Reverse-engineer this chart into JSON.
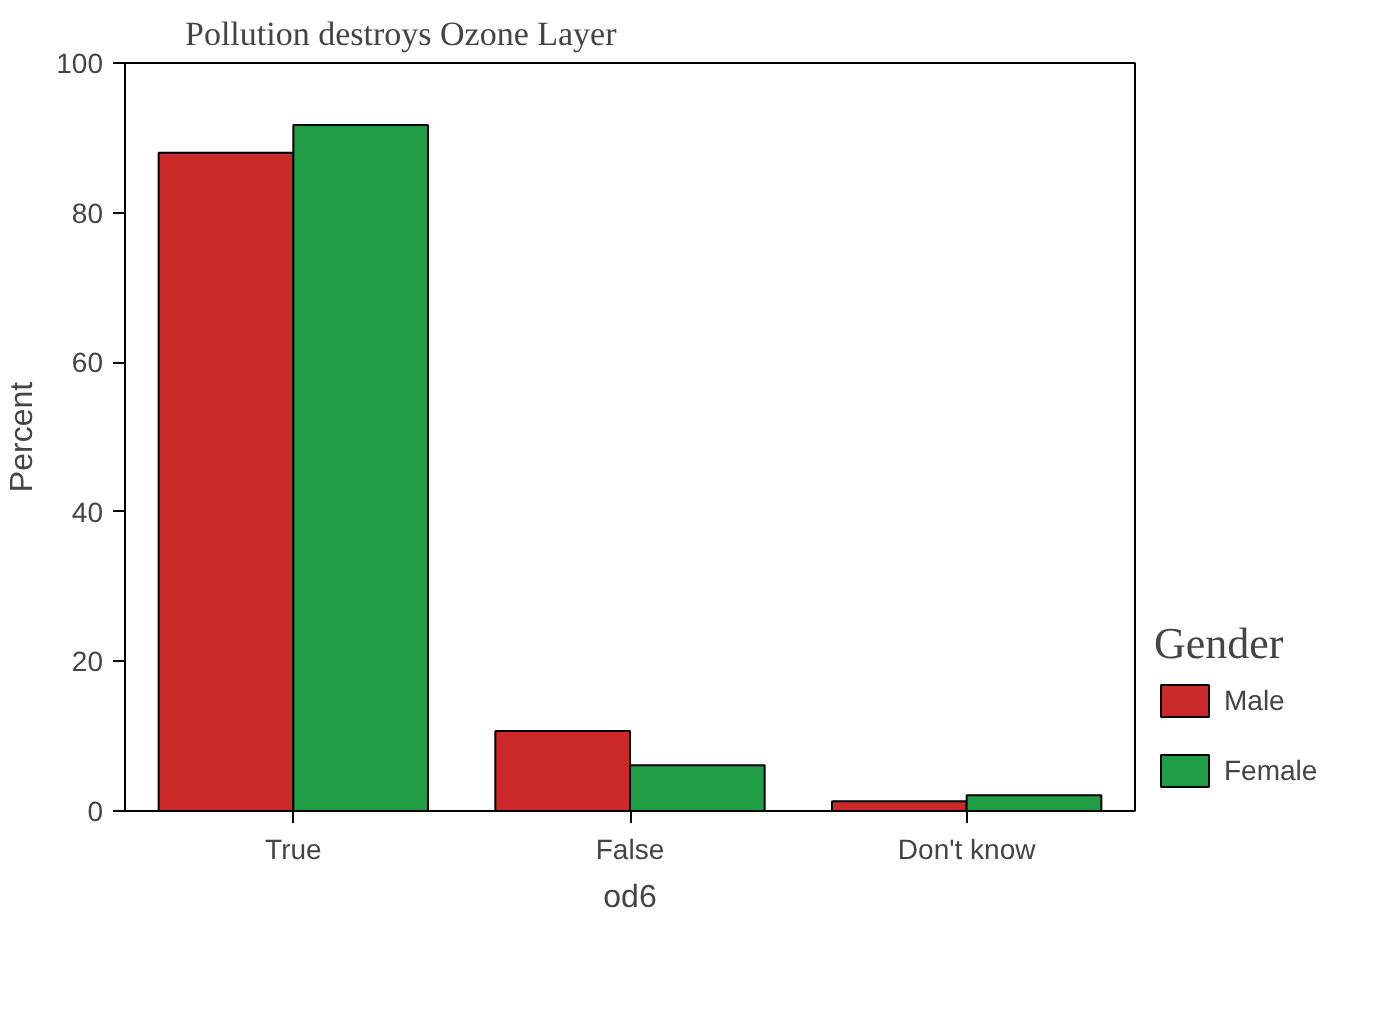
{
  "chart_data": {
    "type": "bar",
    "title": "Pollution destroys Ozone Layer",
    "xlabel": "od6",
    "ylabel": "Percent",
    "legend_title": "Gender",
    "categories": [
      "True",
      "False",
      "Don't know"
    ],
    "series": [
      {
        "name": "Male",
        "color": "#cc2a2a",
        "values": [
          88,
          10.7,
          1.3
        ]
      },
      {
        "name": "Female",
        "color": "#1f9e45",
        "values": [
          91.7,
          6.1,
          2.1
        ]
      }
    ],
    "ylim": [
      0,
      100
    ],
    "yticks": [
      0,
      20,
      40,
      60,
      80,
      100
    ],
    "grid": false,
    "legend": "right"
  }
}
